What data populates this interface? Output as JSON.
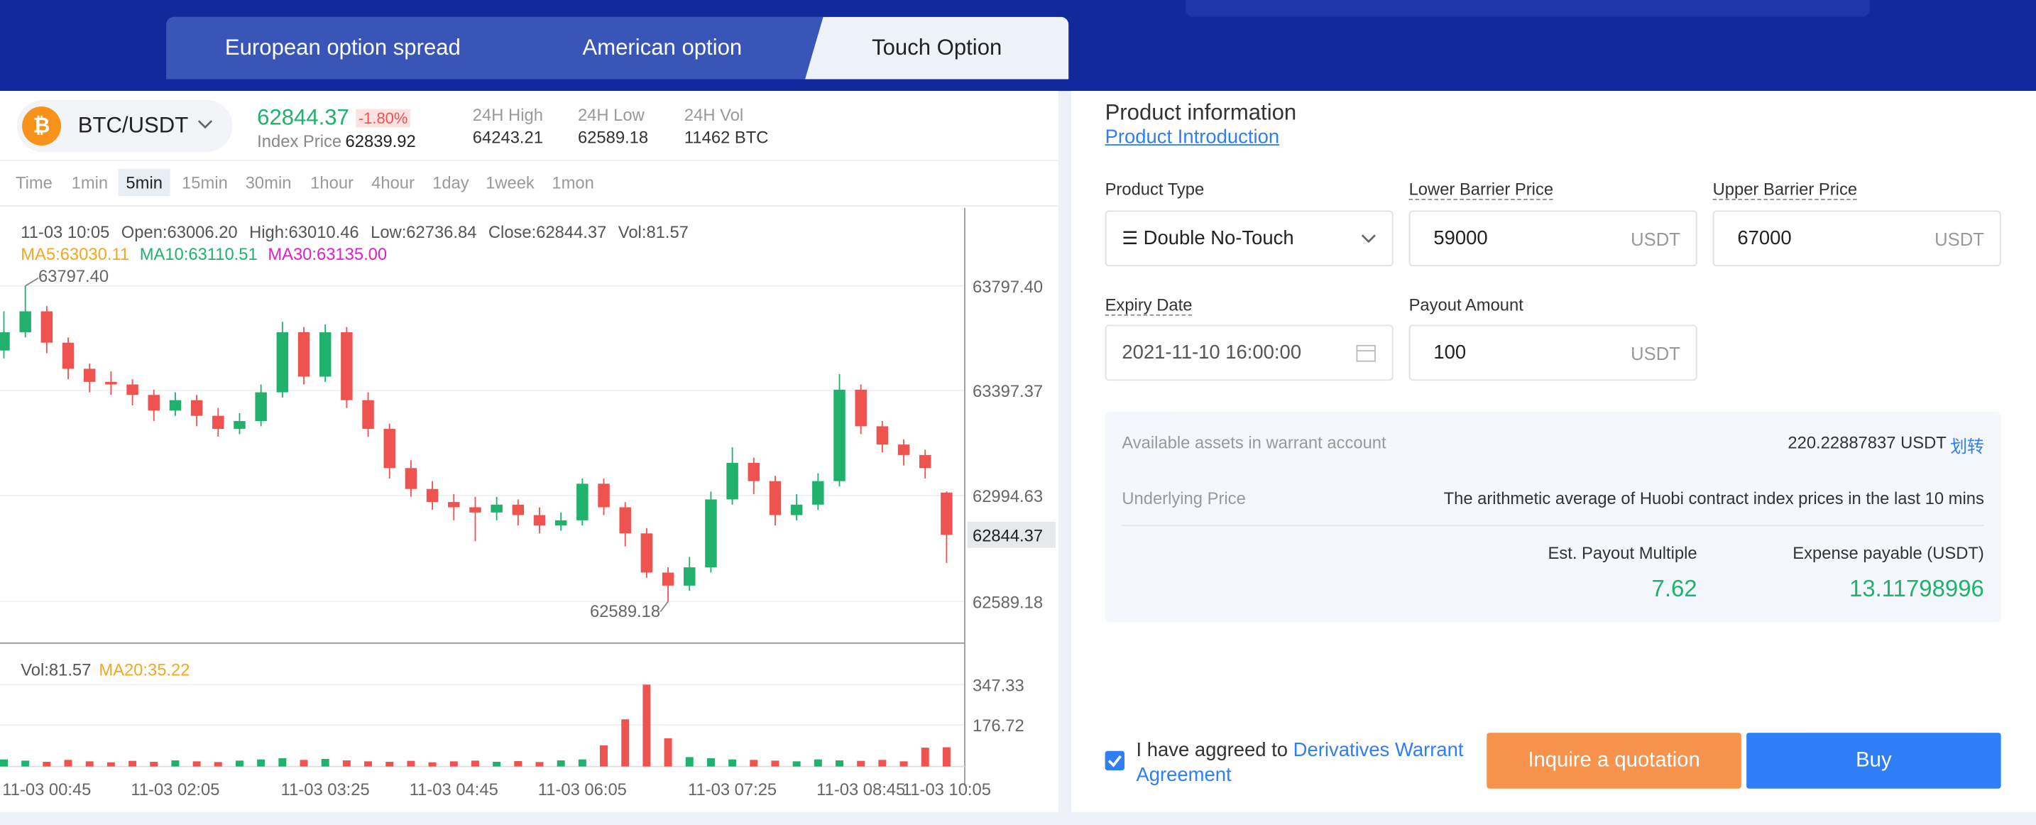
{
  "tabs": {
    "items": [
      "European option spread",
      "American option",
      "Touch Option"
    ],
    "active": 2
  },
  "ticker": {
    "pair": "BTC/USDT",
    "last": "62844.37",
    "change": "-1.80%",
    "index_label": "Index Price",
    "index_value": "62839.92",
    "stats": [
      {
        "label": "24H High",
        "value": "64243.21"
      },
      {
        "label": "24H Low",
        "value": "62589.18"
      },
      {
        "label": "24H Vol",
        "value": "11462 BTC"
      }
    ]
  },
  "intervals": {
    "items": [
      "Time",
      "1min",
      "5min",
      "15min",
      "30min",
      "1hour",
      "4hour",
      "1day",
      "1week",
      "1mon"
    ],
    "active": 2
  },
  "chart_data": {
    "type": "candlestick",
    "info": [
      "11-03 10:05",
      "Open:63006.20",
      "High:63010.46",
      "Low:62736.84",
      "Close:62844.37",
      "Vol:81.57"
    ],
    "ma_legend": [
      {
        "text": "MA5:63030.11",
        "color": "#f5a623"
      },
      {
        "text": "MA10:63110.51",
        "color": "#20b26c"
      },
      {
        "text": "MA30:63135.00",
        "color": "#e020c8"
      }
    ],
    "high_marker": "63797.40",
    "low_marker": "62589.18",
    "categories": [
      null,
      null,
      "11-03 00:45",
      null,
      null,
      null,
      null,
      null,
      "11-03 02:05",
      null,
      null,
      null,
      null,
      null,
      null,
      "11-03 03:25",
      null,
      null,
      null,
      null,
      null,
      "11-03 04:45",
      null,
      null,
      null,
      null,
      null,
      "11-03 06:05",
      null,
      null,
      null,
      null,
      null,
      null,
      "11-03 07:25",
      null,
      null,
      null,
      null,
      null,
      "11-03 08:45",
      null,
      null,
      null,
      "11-03 10:05"
    ],
    "open": [
      63550,
      63620,
      63700,
      63580,
      63480,
      63430,
      63420,
      63380,
      63320,
      63360,
      63300,
      63250,
      63280,
      63390,
      63620,
      63450,
      63620,
      63360,
      63250,
      63100,
      63020,
      62970,
      62950,
      62930,
      62960,
      62920,
      62880,
      62900,
      63040,
      62950,
      62850,
      62700,
      62650,
      62720,
      62980,
      63120,
      63050,
      62920,
      62960,
      63050,
      63400,
      63260,
      63190,
      63150,
      63006.2
    ],
    "high": [
      63700,
      63797.4,
      63720,
      63600,
      63500,
      63470,
      63440,
      63400,
      63390,
      63380,
      63330,
      63310,
      63420,
      63660,
      63640,
      63650,
      63640,
      63390,
      63270,
      63130,
      63050,
      63000,
      62990,
      62990,
      62980,
      62950,
      62930,
      63060,
      63060,
      62970,
      62870,
      62720,
      62760,
      63010,
      63180,
      63140,
      63070,
      63000,
      63080,
      63460,
      63420,
      63280,
      63210,
      63170,
      63010.46
    ],
    "low": [
      63520,
      63600,
      63540,
      63440,
      63390,
      63380,
      63340,
      63280,
      63300,
      63260,
      63220,
      63230,
      63260,
      63370,
      63420,
      63430,
      63330,
      63220,
      63060,
      62990,
      62940,
      62900,
      62820,
      62900,
      62880,
      62850,
      62860,
      62880,
      62920,
      62800,
      62680,
      62589.18,
      62630,
      62700,
      62960,
      63000,
      62880,
      62900,
      62940,
      63030,
      63230,
      63160,
      63110,
      63060,
      62736.84
    ],
    "close": [
      63620,
      63700,
      63580,
      63480,
      63430,
      63420,
      63380,
      63320,
      63360,
      63300,
      63250,
      63280,
      63390,
      63620,
      63450,
      63620,
      63360,
      63250,
      63100,
      63020,
      62970,
      62950,
      62930,
      62960,
      62920,
      62880,
      62900,
      63040,
      62950,
      62850,
      62700,
      62650,
      62720,
      62980,
      63120,
      63050,
      62920,
      62960,
      63050,
      63400,
      63260,
      63190,
      63150,
      63100,
      62844.37
    ],
    "up_color": "#20b26c",
    "down_color": "#ef5350",
    "ylim": [
      62430,
      64096
    ],
    "yticks": [
      {
        "value": 63797.4,
        "label": "63797.40"
      },
      63397.37,
      62994.63,
      62589.18
    ],
    "last_price": 62844.37,
    "volume": {
      "legend": [
        {
          "text": "Vol:81.57",
          "color": "#555"
        },
        {
          "text": "MA20:35.22",
          "color": "#f5a623"
        }
      ],
      "values": [
        30,
        25,
        20,
        28,
        22,
        18,
        24,
        20,
        26,
        22,
        19,
        25,
        30,
        35,
        28,
        32,
        26,
        22,
        20,
        24,
        18,
        22,
        25,
        20,
        23,
        19,
        26,
        30,
        90,
        200,
        347.33,
        120,
        40,
        35,
        30,
        28,
        25,
        22,
        30,
        26,
        24,
        28,
        22,
        80,
        81.57
      ],
      "ylim": [
        0,
        496
      ],
      "yticks": [
        347.33,
        176.72
      ]
    }
  },
  "product": {
    "title": "Product information",
    "link": "Product Introduction",
    "fields": [
      {
        "label": "Product Type",
        "value": "Double No-Touch"
      },
      {
        "label": "Lower Barrier Price",
        "value": "59000",
        "unit": "USDT"
      },
      {
        "label": "Upper Barrier Price",
        "value": "67000",
        "unit": "USDT"
      },
      {
        "label": "Expiry Date",
        "value": "2021-11-10 16:00:00"
      },
      {
        "label": "Payout Amount",
        "value": "100",
        "unit": "USDT"
      }
    ],
    "summary": {
      "assets_label": "Available assets in warrant account",
      "assets_value": "220.22887837 USDT",
      "transfer": "划转",
      "underlying_label": "Underlying Price",
      "underlying_value": "The arithmetic average of Huobi contract index prices in the last 10 mins",
      "multiple_label": "Est. Payout Multiple",
      "multiple_value": "7.62",
      "expense_label": "Expense payable (USDT)",
      "expense_value": "13.11798996"
    },
    "agree_text": "I have aggreed to",
    "agree_link": "Derivatives Warrant Agreement",
    "quote_button": "Inquire a quotation",
    "buy_button": "Buy"
  }
}
